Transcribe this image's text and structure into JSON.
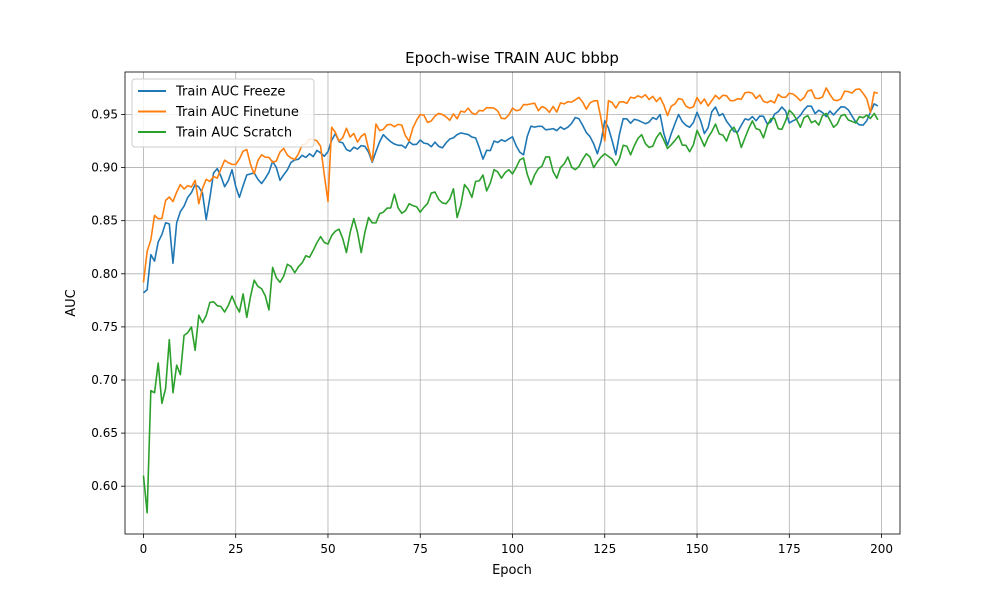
{
  "chart_data": {
    "type": "line",
    "title": "Epoch-wise TRAIN AUC bbbp",
    "xlabel": "Epoch",
    "ylabel": "AUC",
    "xlim": [
      -5,
      205
    ],
    "ylim": [
      0.555,
      0.99
    ],
    "xticks": [
      0,
      25,
      50,
      75,
      100,
      125,
      150,
      175,
      200
    ],
    "yticks": [
      0.6,
      0.65,
      0.7,
      0.75,
      0.8,
      0.85,
      0.9,
      0.95
    ],
    "grid": true,
    "legend_position": "top-left",
    "series": [
      {
        "name": "Train AUC Freeze",
        "color": "#1f77b4",
        "anchors": [
          [
            0,
            0.782
          ],
          [
            1,
            0.785
          ],
          [
            2,
            0.818
          ],
          [
            3,
            0.812
          ],
          [
            4,
            0.83
          ],
          [
            6,
            0.848
          ],
          [
            7,
            0.847
          ],
          [
            8,
            0.81
          ],
          [
            9,
            0.848
          ],
          [
            12,
            0.872
          ],
          [
            14,
            0.884
          ],
          [
            16,
            0.876
          ],
          [
            17,
            0.851
          ],
          [
            19,
            0.895
          ],
          [
            20,
            0.899
          ],
          [
            22,
            0.882
          ],
          [
            24,
            0.898
          ],
          [
            26,
            0.872
          ],
          [
            28,
            0.893
          ],
          [
            30,
            0.895
          ],
          [
            32,
            0.885
          ],
          [
            35,
            0.906
          ],
          [
            37,
            0.888
          ],
          [
            40,
            0.905
          ],
          [
            45,
            0.913
          ],
          [
            50,
            0.915
          ],
          [
            52,
            0.932
          ],
          [
            55,
            0.917
          ],
          [
            60,
            0.92
          ],
          [
            62,
            0.905
          ],
          [
            65,
            0.931
          ],
          [
            70,
            0.921
          ],
          [
            75,
            0.926
          ],
          [
            80,
            0.92
          ],
          [
            85,
            0.931
          ],
          [
            90,
            0.928
          ],
          [
            92,
            0.908
          ],
          [
            95,
            0.925
          ],
          [
            100,
            0.929
          ],
          [
            103,
            0.912
          ],
          [
            105,
            0.939
          ],
          [
            110,
            0.936
          ],
          [
            115,
            0.938
          ],
          [
            118,
            0.946
          ],
          [
            120,
            0.933
          ],
          [
            123,
            0.913
          ],
          [
            125,
            0.944
          ],
          [
            128,
            0.912
          ],
          [
            130,
            0.946
          ],
          [
            135,
            0.943
          ],
          [
            140,
            0.95
          ],
          [
            142,
            0.921
          ],
          [
            145,
            0.95
          ],
          [
            148,
            0.938
          ],
          [
            150,
            0.952
          ],
          [
            152,
            0.932
          ],
          [
            155,
            0.957
          ],
          [
            160,
            0.934
          ],
          [
            165,
            0.948
          ],
          [
            170,
            0.943
          ],
          [
            173,
            0.957
          ],
          [
            175,
            0.942
          ],
          [
            180,
            0.958
          ],
          [
            185,
            0.948
          ],
          [
            190,
            0.957
          ],
          [
            193,
            0.943
          ],
          [
            195,
            0.94
          ],
          [
            198,
            0.96
          ],
          [
            199,
            0.958
          ]
        ]
      },
      {
        "name": "Train AUC Finetune",
        "color": "#ff7f0e",
        "anchors": [
          [
            0,
            0.792
          ],
          [
            1,
            0.821
          ],
          [
            2,
            0.832
          ],
          [
            3,
            0.855
          ],
          [
            5,
            0.852
          ],
          [
            6,
            0.869
          ],
          [
            8,
            0.868
          ],
          [
            10,
            0.884
          ],
          [
            12,
            0.883
          ],
          [
            14,
            0.888
          ],
          [
            15,
            0.866
          ],
          [
            17,
            0.889
          ],
          [
            20,
            0.89
          ],
          [
            22,
            0.907
          ],
          [
            25,
            0.903
          ],
          [
            28,
            0.917
          ],
          [
            30,
            0.894
          ],
          [
            32,
            0.912
          ],
          [
            35,
            0.905
          ],
          [
            38,
            0.918
          ],
          [
            40,
            0.909
          ],
          [
            42,
            0.913
          ],
          [
            45,
            0.927
          ],
          [
            48,
            0.92
          ],
          [
            50,
            0.868
          ],
          [
            51,
            0.938
          ],
          [
            53,
            0.925
          ],
          [
            55,
            0.937
          ],
          [
            58,
            0.924
          ],
          [
            60,
            0.932
          ],
          [
            62,
            0.906
          ],
          [
            63,
            0.941
          ],
          [
            65,
            0.936
          ],
          [
            70,
            0.94
          ],
          [
            72,
            0.925
          ],
          [
            75,
            0.95
          ],
          [
            78,
            0.944
          ],
          [
            80,
            0.951
          ],
          [
            85,
            0.946
          ],
          [
            88,
            0.956
          ],
          [
            90,
            0.95
          ],
          [
            95,
            0.956
          ],
          [
            98,
            0.946
          ],
          [
            100,
            0.956
          ],
          [
            105,
            0.96
          ],
          [
            110,
            0.952
          ],
          [
            115,
            0.962
          ],
          [
            118,
            0.966
          ],
          [
            120,
            0.955
          ],
          [
            123,
            0.963
          ],
          [
            125,
            0.925
          ],
          [
            126,
            0.963
          ],
          [
            128,
            0.956
          ],
          [
            130,
            0.962
          ],
          [
            135,
            0.966
          ],
          [
            140,
            0.966
          ],
          [
            142,
            0.949
          ],
          [
            145,
            0.965
          ],
          [
            148,
            0.956
          ],
          [
            150,
            0.966
          ],
          [
            153,
            0.958
          ],
          [
            155,
            0.968
          ],
          [
            160,
            0.963
          ],
          [
            165,
            0.97
          ],
          [
            170,
            0.963
          ],
          [
            175,
            0.97
          ],
          [
            178,
            0.963
          ],
          [
            180,
            0.972
          ],
          [
            183,
            0.965
          ],
          [
            185,
            0.975
          ],
          [
            188,
            0.963
          ],
          [
            190,
            0.972
          ],
          [
            195,
            0.97
          ],
          [
            197,
            0.952
          ],
          [
            198,
            0.971
          ],
          [
            199,
            0.97
          ]
        ]
      },
      {
        "name": "Train AUC Scratch",
        "color": "#2ca02c",
        "anchors": [
          [
            0,
            0.61
          ],
          [
            1,
            0.575
          ],
          [
            2,
            0.69
          ],
          [
            3,
            0.688
          ],
          [
            4,
            0.716
          ],
          [
            5,
            0.678
          ],
          [
            6,
            0.692
          ],
          [
            7,
            0.738
          ],
          [
            8,
            0.688
          ],
          [
            9,
            0.714
          ],
          [
            10,
            0.705
          ],
          [
            11,
            0.742
          ],
          [
            13,
            0.75
          ],
          [
            14,
            0.728
          ],
          [
            15,
            0.761
          ],
          [
            16,
            0.754
          ],
          [
            18,
            0.773
          ],
          [
            20,
            0.77
          ],
          [
            22,
            0.764
          ],
          [
            24,
            0.779
          ],
          [
            26,
            0.764
          ],
          [
            27,
            0.781
          ],
          [
            28,
            0.759
          ],
          [
            30,
            0.794
          ],
          [
            32,
            0.786
          ],
          [
            34,
            0.766
          ],
          [
            35,
            0.806
          ],
          [
            37,
            0.792
          ],
          [
            39,
            0.809
          ],
          [
            41,
            0.801
          ],
          [
            44,
            0.817
          ],
          [
            46,
            0.822
          ],
          [
            48,
            0.835
          ],
          [
            50,
            0.828
          ],
          [
            51,
            0.836
          ],
          [
            53,
            0.842
          ],
          [
            55,
            0.82
          ],
          [
            57,
            0.852
          ],
          [
            59,
            0.82
          ],
          [
            61,
            0.853
          ],
          [
            63,
            0.848
          ],
          [
            65,
            0.858
          ],
          [
            67,
            0.862
          ],
          [
            68,
            0.875
          ],
          [
            70,
            0.857
          ],
          [
            72,
            0.866
          ],
          [
            75,
            0.858
          ],
          [
            78,
            0.876
          ],
          [
            80,
            0.87
          ],
          [
            82,
            0.866
          ],
          [
            84,
            0.88
          ],
          [
            85,
            0.853
          ],
          [
            87,
            0.884
          ],
          [
            89,
            0.872
          ],
          [
            90,
            0.887
          ],
          [
            92,
            0.893
          ],
          [
            93,
            0.878
          ],
          [
            95,
            0.898
          ],
          [
            97,
            0.89
          ],
          [
            99,
            0.898
          ],
          [
            100,
            0.894
          ],
          [
            103,
            0.909
          ],
          [
            105,
            0.884
          ],
          [
            107,
            0.899
          ],
          [
            110,
            0.91
          ],
          [
            112,
            0.89
          ],
          [
            115,
            0.91
          ],
          [
            117,
            0.898
          ],
          [
            120,
            0.913
          ],
          [
            122,
            0.9
          ],
          [
            125,
            0.913
          ],
          [
            128,
            0.902
          ],
          [
            130,
            0.921
          ],
          [
            132,
            0.912
          ],
          [
            135,
            0.931
          ],
          [
            137,
            0.919
          ],
          [
            140,
            0.933
          ],
          [
            142,
            0.918
          ],
          [
            145,
            0.93
          ],
          [
            148,
            0.915
          ],
          [
            150,
            0.935
          ],
          [
            152,
            0.92
          ],
          [
            155,
            0.941
          ],
          [
            158,
            0.925
          ],
          [
            160,
            0.938
          ],
          [
            162,
            0.919
          ],
          [
            165,
            0.944
          ],
          [
            168,
            0.928
          ],
          [
            170,
            0.946
          ],
          [
            173,
            0.936
          ],
          [
            175,
            0.954
          ],
          [
            178,
            0.938
          ],
          [
            180,
            0.949
          ],
          [
            183,
            0.94
          ],
          [
            185,
            0.951
          ],
          [
            187,
            0.938
          ],
          [
            190,
            0.95
          ],
          [
            193,
            0.942
          ],
          [
            195,
            0.947
          ],
          [
            198,
            0.951
          ],
          [
            199,
            0.945
          ]
        ]
      }
    ]
  }
}
